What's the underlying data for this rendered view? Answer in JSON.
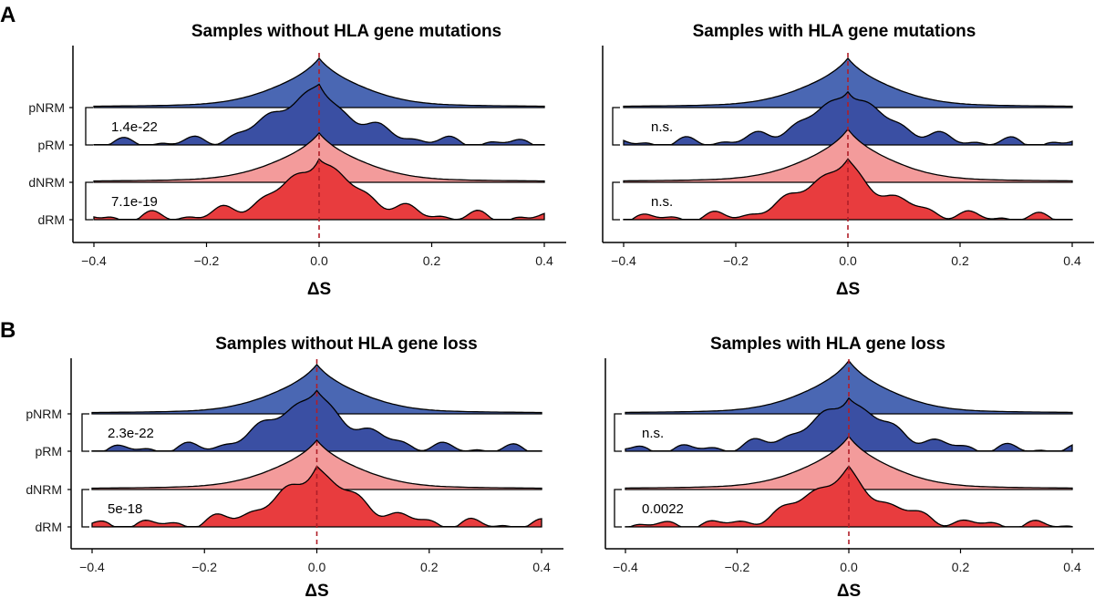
{
  "figure": {
    "panel_letters": [
      "A",
      "B"
    ],
    "colors": {
      "pNRM": "#4a67b3",
      "pRM": "#3a4fa3",
      "dNRM": "#f39b9b",
      "dRM": "#e83c3e",
      "zero_line": "#b01e28"
    }
  },
  "chart_data": [
    {
      "type": "ridgeline",
      "panel": "A",
      "title": "Samples without HLA gene mutations",
      "xlabel": "ΔS",
      "xlim": [
        -0.4,
        0.4
      ],
      "xticks": [
        -0.4,
        -0.2,
        0.0,
        0.2,
        0.4
      ],
      "xtick_labels": [
        "−0.4",
        "−0.2",
        "0.0",
        "0.2",
        "0.4"
      ],
      "categories": [
        "pNRM",
        "pRM",
        "dNRM",
        "dRM"
      ],
      "series": [
        {
          "name": "pNRM",
          "shape": "smooth",
          "peak": 1.3
        },
        {
          "name": "pRM",
          "shape": "bumpy",
          "peak": 1.6
        },
        {
          "name": "dNRM",
          "shape": "smooth",
          "peak": 1.3
        },
        {
          "name": "dRM",
          "shape": "bumpy",
          "peak": 1.6
        }
      ],
      "comparisons": [
        {
          "groups": [
            "pNRM",
            "pRM"
          ],
          "label": "1.4e-22"
        },
        {
          "groups": [
            "dNRM",
            "dRM"
          ],
          "label": "7.1e-19"
        }
      ]
    },
    {
      "type": "ridgeline",
      "panel": "A",
      "title": "Samples with HLA gene mutations",
      "xlabel": "ΔS",
      "xlim": [
        -0.4,
        0.4
      ],
      "xticks": [
        -0.4,
        -0.2,
        0.0,
        0.2,
        0.4
      ],
      "xtick_labels": [
        "−0.4",
        "−0.2",
        "0.0",
        "0.2",
        "0.4"
      ],
      "categories": [
        "pNRM",
        "pRM",
        "dNRM",
        "dRM"
      ],
      "series": [
        {
          "name": "pNRM",
          "shape": "smooth",
          "peak": 1.3
        },
        {
          "name": "pRM",
          "shape": "bumpy",
          "peak": 1.4
        },
        {
          "name": "dNRM",
          "shape": "smooth",
          "peak": 1.4
        },
        {
          "name": "dRM",
          "shape": "bumpy",
          "peak": 1.6
        }
      ],
      "comparisons": [
        {
          "groups": [
            "pNRM",
            "pRM"
          ],
          "label": "n.s."
        },
        {
          "groups": [
            "dNRM",
            "dRM"
          ],
          "label": "n.s."
        }
      ]
    },
    {
      "type": "ridgeline",
      "panel": "B",
      "title": "Samples without HLA gene loss",
      "xlabel": "ΔS",
      "xlim": [
        -0.4,
        0.4
      ],
      "xticks": [
        -0.4,
        -0.2,
        0.0,
        0.2,
        0.4
      ],
      "xtick_labels": [
        "−0.4",
        "−0.2",
        "0.0",
        "0.2",
        "0.4"
      ],
      "categories": [
        "pNRM",
        "pRM",
        "dNRM",
        "dRM"
      ],
      "series": [
        {
          "name": "pNRM",
          "shape": "smooth",
          "peak": 1.3
        },
        {
          "name": "pRM",
          "shape": "bumpy",
          "peak": 1.6
        },
        {
          "name": "dNRM",
          "shape": "smooth",
          "peak": 1.3
        },
        {
          "name": "dRM",
          "shape": "bumpy",
          "peak": 1.6
        }
      ],
      "comparisons": [
        {
          "groups": [
            "pNRM",
            "pRM"
          ],
          "label": "2.3e-22"
        },
        {
          "groups": [
            "dNRM",
            "dRM"
          ],
          "label": "5e-18"
        }
      ]
    },
    {
      "type": "ridgeline",
      "panel": "B",
      "title": "Samples with HLA gene loss",
      "xlabel": "ΔS",
      "xlim": [
        -0.4,
        0.4
      ],
      "xticks": [
        -0.4,
        -0.2,
        0.0,
        0.2,
        0.4
      ],
      "xtick_labels": [
        "−0.4",
        "−0.2",
        "0.0",
        "0.2",
        "0.4"
      ],
      "categories": [
        "pNRM",
        "pRM",
        "dNRM",
        "dRM"
      ],
      "series": [
        {
          "name": "pNRM",
          "shape": "smooth",
          "peak": 1.4
        },
        {
          "name": "pRM",
          "shape": "bumpy",
          "peak": 1.4
        },
        {
          "name": "dNRM",
          "shape": "smooth",
          "peak": 1.4
        },
        {
          "name": "dRM",
          "shape": "bumpy",
          "peak": 1.6
        }
      ],
      "comparisons": [
        {
          "groups": [
            "pNRM",
            "pRM"
          ],
          "label": "n.s."
        },
        {
          "groups": [
            "dNRM",
            "dRM"
          ],
          "label": "0.0022"
        }
      ]
    }
  ]
}
